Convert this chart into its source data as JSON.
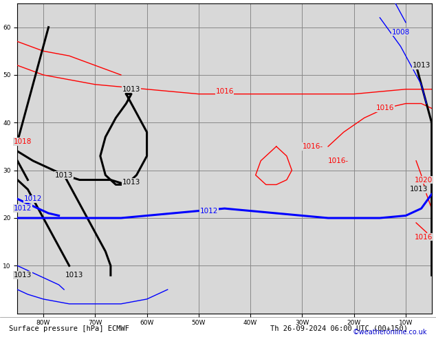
{
  "title_bottom": "Surface pressure [hPa] ECMWF",
  "datetime_str": "Th 26-09-2024 06:00 UTC (00+150)",
  "credit": "©weatheronline.co.uk",
  "bg_ocean": "#d8d8d8",
  "bg_land": "#c8e6a0",
  "bg_land_dark": "#b0c890",
  "grid_color": "#888888",
  "figsize": [
    6.34,
    4.9
  ],
  "dpi": 100,
  "lon_min": -85,
  "lon_max": -5,
  "lat_min": 0,
  "lat_max": 65,
  "grid_lons": [
    -80,
    -70,
    -60,
    -50,
    -40,
    -30,
    -20,
    -10
  ],
  "grid_lats": [
    10,
    20,
    30,
    40,
    50,
    60
  ],
  "isobars": [
    {
      "color": "red",
      "lw": 1.0,
      "points": [
        [
          -85,
          52
        ],
        [
          -80,
          50
        ],
        [
          -70,
          48
        ],
        [
          -60,
          47
        ],
        [
          -50,
          46
        ],
        [
          -40,
          46
        ],
        [
          -30,
          46
        ],
        [
          -20,
          46
        ],
        [
          -10,
          47
        ],
        [
          -5,
          47
        ]
      ]
    },
    {
      "color": "red",
      "lw": 1.0,
      "points": [
        [
          -85,
          57
        ],
        [
          -80,
          55
        ],
        [
          -75,
          54
        ],
        [
          -70,
          52
        ],
        [
          -65,
          50
        ]
      ]
    },
    {
      "color": "red",
      "lw": 1.0,
      "points": [
        [
          -35,
          35
        ],
        [
          -33,
          33
        ],
        [
          -32,
          30
        ],
        [
          -33,
          28
        ],
        [
          -35,
          27
        ],
        [
          -37,
          27
        ],
        [
          -39,
          29
        ],
        [
          -38,
          32
        ],
        [
          -35,
          35
        ]
      ]
    },
    {
      "color": "red",
      "lw": 1.0,
      "points": [
        [
          -25,
          35
        ],
        [
          -22,
          38
        ],
        [
          -18,
          41
        ],
        [
          -14,
          43
        ],
        [
          -10,
          44
        ],
        [
          -7,
          44
        ],
        [
          -5,
          43
        ]
      ]
    },
    {
      "color": "red",
      "lw": 1.0,
      "points": [
        [
          -8,
          32
        ],
        [
          -7,
          29
        ],
        [
          -6,
          25
        ],
        [
          -5,
          22
        ]
      ]
    },
    {
      "color": "red",
      "lw": 1.0,
      "points": [
        [
          -8,
          19
        ],
        [
          -6,
          17
        ],
        [
          -5,
          15
        ],
        [
          -5,
          12
        ]
      ]
    },
    {
      "color": "black",
      "lw": 2.2,
      "points": [
        [
          -64,
          46
        ],
        [
          -62,
          42
        ],
        [
          -60,
          38
        ],
        [
          -60,
          33
        ],
        [
          -62,
          29
        ],
        [
          -64,
          27
        ],
        [
          -66,
          27
        ],
        [
          -68,
          29
        ],
        [
          -69,
          33
        ],
        [
          -68,
          37
        ],
        [
          -66,
          41
        ],
        [
          -64,
          44
        ],
        [
          -63,
          46
        ],
        [
          -64,
          46
        ]
      ]
    },
    {
      "color": "black",
      "lw": 2.2,
      "points": [
        [
          -85,
          34
        ],
        [
          -82,
          32
        ],
        [
          -78,
          30
        ],
        [
          -76,
          29
        ],
        [
          -73,
          28
        ],
        [
          -70,
          28
        ],
        [
          -67,
          28
        ],
        [
          -64,
          27
        ]
      ]
    },
    {
      "color": "black",
      "lw": 2.2,
      "points": [
        [
          -76,
          29
        ],
        [
          -74,
          25
        ],
        [
          -72,
          21
        ],
        [
          -70,
          17
        ],
        [
          -68,
          13
        ],
        [
          -67,
          10
        ],
        [
          -67,
          8
        ]
      ]
    },
    {
      "color": "black",
      "lw": 2.2,
      "points": [
        [
          -85,
          28
        ],
        [
          -83,
          26
        ],
        [
          -82,
          24
        ],
        [
          -81,
          22
        ],
        [
          -80,
          20
        ],
        [
          -79,
          18
        ],
        [
          -78,
          16
        ],
        [
          -77,
          14
        ],
        [
          -76,
          12
        ],
        [
          -75,
          10
        ]
      ]
    },
    {
      "color": "black",
      "lw": 2.2,
      "points": [
        [
          -85,
          36
        ],
        [
          -84,
          40
        ],
        [
          -83,
          44
        ],
        [
          -82,
          48
        ],
        [
          -81,
          52
        ],
        [
          -80,
          56
        ],
        [
          -79,
          60
        ]
      ]
    },
    {
      "color": "black",
      "lw": 2.2,
      "points": [
        [
          -85,
          32
        ],
        [
          -84,
          30
        ],
        [
          -83,
          28
        ]
      ]
    },
    {
      "color": "black",
      "lw": 2.2,
      "points": [
        [
          -8,
          52
        ],
        [
          -7,
          48
        ],
        [
          -6,
          44
        ],
        [
          -5,
          40
        ],
        [
          -5,
          36
        ],
        [
          -5,
          32
        ],
        [
          -5,
          28
        ],
        [
          -5,
          24
        ],
        [
          -5,
          20
        ],
        [
          -5,
          16
        ],
        [
          -5,
          12
        ],
        [
          -5,
          8
        ]
      ]
    },
    {
      "color": "blue",
      "lw": 2.2,
      "points": [
        [
          -85,
          20
        ],
        [
          -80,
          20
        ],
        [
          -75,
          20
        ],
        [
          -70,
          20
        ],
        [
          -65,
          20
        ],
        [
          -60,
          20.5
        ],
        [
          -55,
          21
        ],
        [
          -50,
          21.5
        ],
        [
          -45,
          22
        ],
        [
          -40,
          21.5
        ],
        [
          -35,
          21
        ],
        [
          -30,
          20.5
        ],
        [
          -25,
          20
        ],
        [
          -20,
          20
        ],
        [
          -15,
          20
        ],
        [
          -10,
          20.5
        ],
        [
          -7,
          22
        ],
        [
          -5,
          25
        ]
      ]
    },
    {
      "color": "blue",
      "lw": 2.2,
      "points": [
        [
          -85,
          24
        ],
        [
          -83,
          23
        ],
        [
          -81,
          22
        ],
        [
          -79,
          21
        ],
        [
          -77,
          20.5
        ]
      ]
    },
    {
      "color": "blue",
      "lw": 1.0,
      "points": [
        [
          -15,
          62
        ],
        [
          -13,
          59
        ],
        [
          -11,
          56
        ],
        [
          -9,
          52
        ],
        [
          -7,
          48
        ],
        [
          -6,
          44
        ]
      ]
    },
    {
      "color": "blue",
      "lw": 1.0,
      "points": [
        [
          -12,
          65
        ],
        [
          -11,
          63
        ],
        [
          -10,
          61
        ]
      ]
    },
    {
      "color": "blue",
      "lw": 1.0,
      "points": [
        [
          -85,
          5
        ],
        [
          -83,
          4
        ],
        [
          -80,
          3
        ],
        [
          -75,
          2
        ],
        [
          -70,
          2
        ],
        [
          -65,
          2
        ],
        [
          -60,
          3
        ],
        [
          -56,
          5
        ]
      ]
    },
    {
      "color": "blue",
      "lw": 1.0,
      "points": [
        [
          -85,
          10
        ],
        [
          -83,
          9
        ],
        [
          -81,
          8
        ],
        [
          -79,
          7
        ],
        [
          -77,
          6
        ],
        [
          -76,
          5
        ]
      ]
    }
  ],
  "isobar_labels": [
    {
      "text": "1016",
      "lon": -45,
      "lat": 46.5,
      "color": "red",
      "fontsize": 7.5
    },
    {
      "text": "1016-",
      "lon": -28,
      "lat": 35,
      "color": "red",
      "fontsize": 7.5
    },
    {
      "text": "1016-",
      "lon": -23,
      "lat": 32,
      "color": "red",
      "fontsize": 7.5
    },
    {
      "text": "1016",
      "lon": -14,
      "lat": 43,
      "color": "red",
      "fontsize": 7.5
    },
    {
      "text": "1018",
      "lon": -84,
      "lat": 36,
      "color": "red",
      "fontsize": 7.5
    },
    {
      "text": "1020",
      "lon": -6.5,
      "lat": 28,
      "color": "red",
      "fontsize": 7.5
    },
    {
      "text": "1016",
      "lon": -6.5,
      "lat": 16,
      "color": "red",
      "fontsize": 7.5
    },
    {
      "text": "1013",
      "lon": -63,
      "lat": 47,
      "color": "black",
      "fontsize": 7.5
    },
    {
      "text": "1013",
      "lon": -63,
      "lat": 27.5,
      "color": "black",
      "fontsize": 7.5
    },
    {
      "text": "1013",
      "lon": -76,
      "lat": 29,
      "color": "black",
      "fontsize": 7.5
    },
    {
      "text": "1013",
      "lon": -7.5,
      "lat": 26,
      "color": "black",
      "fontsize": 7.5
    },
    {
      "text": "1013",
      "lon": -7,
      "lat": 52,
      "color": "black",
      "fontsize": 7.5
    },
    {
      "text": "1012",
      "lon": -48,
      "lat": 21.5,
      "color": "blue",
      "fontsize": 7.5
    },
    {
      "text": "1012",
      "lon": -82,
      "lat": 24,
      "color": "blue",
      "fontsize": 7.5
    },
    {
      "text": "1008",
      "lon": -11,
      "lat": 59,
      "color": "blue",
      "fontsize": 7.5
    },
    {
      "text": "1012",
      "lon": -84,
      "lat": 22,
      "color": "blue",
      "fontsize": 7.5
    },
    {
      "text": "1013",
      "lon": -84,
      "lat": 8,
      "color": "black",
      "fontsize": 7.5
    },
    {
      "text": "1013",
      "lon": -74,
      "lat": 8,
      "color": "black",
      "fontsize": 7.5
    }
  ],
  "bottom_label_color": "#000000",
  "credit_color": "#0000cc"
}
